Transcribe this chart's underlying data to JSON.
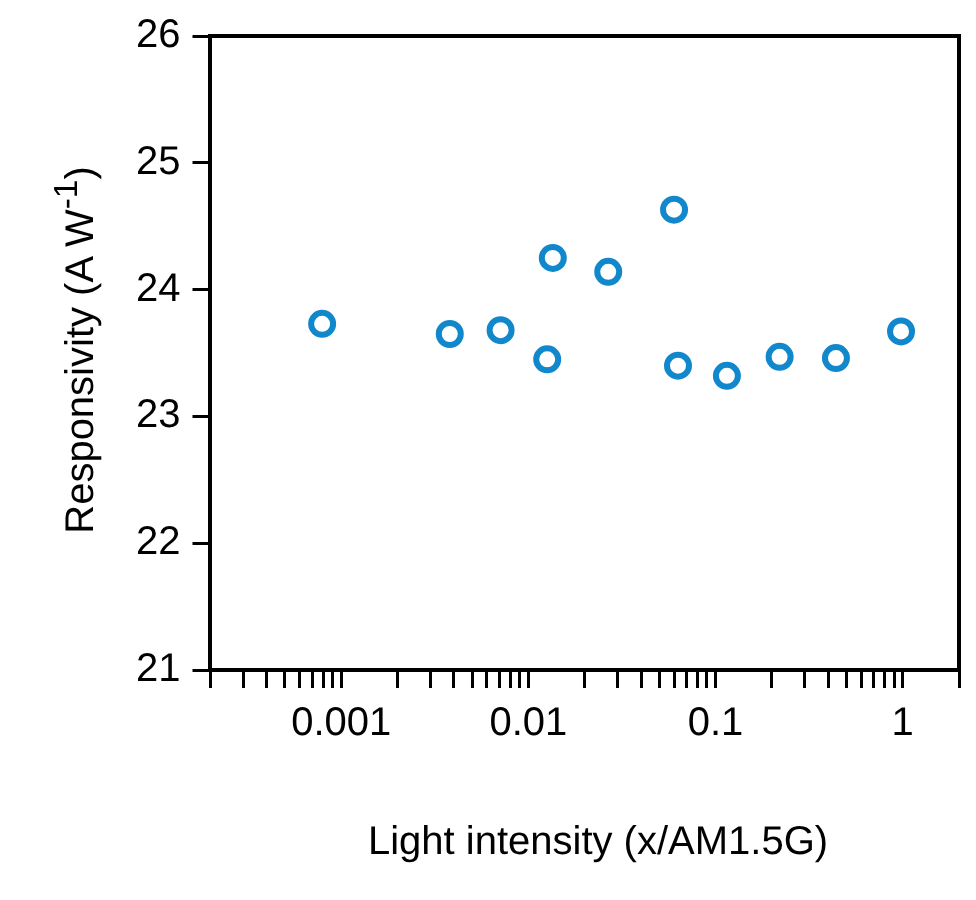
{
  "chart_data": {
    "type": "scatter",
    "xlabel": "Light intensity (x/AM1.5G)",
    "ylabel": "Responsivity (A W$^{-1}$)",
    "x": [
      0.00079,
      0.0038,
      0.0071,
      0.0126,
      0.0135,
      0.0267,
      0.06,
      0.063,
      0.115,
      0.22,
      0.44,
      0.98
    ],
    "series": [
      {
        "color": "#1188cc",
        "values": [
          23.73,
          23.65,
          23.68,
          23.45,
          24.25,
          24.14,
          24.63,
          23.4,
          23.32,
          23.47,
          23.46,
          23.67
        ]
      }
    ],
    "log": "x",
    "marker": "circle",
    "grid": false,
    "legend": false,
    "xlim": [
      0.0002,
      2
    ],
    "xticks": [
      {
        "value": 0.0002,
        "label": null
      },
      {
        "value": 0.0003,
        "label": null
      },
      {
        "value": 0.0004,
        "label": null
      },
      {
        "value": 0.0005,
        "label": null
      },
      {
        "value": 0.0006,
        "label": null
      },
      {
        "value": 0.0007,
        "label": null
      },
      {
        "value": 0.0008,
        "label": null
      },
      {
        "value": 0.0009,
        "label": null
      },
      0.001,
      {
        "value": 0.002,
        "label": null
      },
      {
        "value": 0.003,
        "label": null
      },
      {
        "value": 0.004,
        "label": null
      },
      {
        "value": 0.005,
        "label": null
      },
      {
        "value": 0.006,
        "label": null
      },
      {
        "value": 0.007,
        "label": null
      },
      {
        "value": 0.008,
        "label": null
      },
      {
        "value": 0.009,
        "label": null
      },
      0.01,
      {
        "value": 0.02,
        "label": null
      },
      {
        "value": 0.03,
        "label": null
      },
      {
        "value": 0.04,
        "label": null
      },
      {
        "value": 0.05,
        "label": null
      },
      {
        "value": 0.06,
        "label": null
      },
      {
        "value": 0.07,
        "label": null
      },
      {
        "value": 0.08,
        "label": null
      },
      {
        "value": 0.09,
        "label": null
      },
      0.1,
      {
        "value": 0.2,
        "label": null
      },
      {
        "value": 0.3,
        "label": null
      },
      {
        "value": 0.4,
        "label": null
      },
      {
        "value": 0.5,
        "label": null
      },
      {
        "value": 0.6,
        "label": null
      },
      {
        "value": 0.7,
        "label": null
      },
      {
        "value": 0.8,
        "label": null
      },
      {
        "value": 0.9,
        "label": null
      },
      1,
      {
        "value": 2,
        "label": null
      }
    ],
    "ylim": [
      21,
      26
    ],
    "yticks": [
      21,
      22,
      23,
      24,
      25,
      26
    ]
  }
}
